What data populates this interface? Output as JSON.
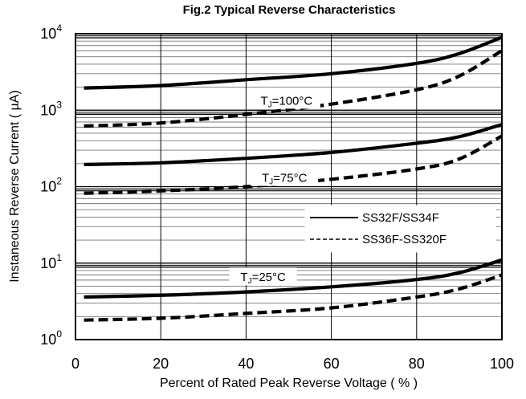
{
  "chart_data": {
    "type": "line",
    "title": "Fig.2  Typical Reverse Characteristics",
    "xlabel": "Percent of Rated Peak Reverse Voltage ( % )",
    "ylabel": "Instaneous Reverse Current ( µA)",
    "xlim": [
      0,
      100
    ],
    "ylim": [
      1,
      10000
    ],
    "yscale": "log",
    "grid": true,
    "x_ticks": [
      "0",
      "20",
      "40",
      "60",
      "80",
      "100"
    ],
    "y_ticks": [
      {
        "base": "10",
        "exp": "0"
      },
      {
        "base": "10",
        "exp": "1"
      },
      {
        "base": "10",
        "exp": "2"
      },
      {
        "base": "10",
        "exp": "3"
      },
      {
        "base": "10",
        "exp": "4"
      }
    ],
    "legend": {
      "position": "right-middle",
      "entries": [
        {
          "label": "SS32F/SS34F",
          "style": "solid"
        },
        {
          "label": "SS36F-SS320F",
          "style": "dashed"
        }
      ]
    },
    "annotations": [
      {
        "main": "T",
        "sub": "J",
        "rest": "=100°C",
        "x": 49.5,
        "y": 1300
      },
      {
        "main": "T",
        "sub": "J",
        "rest": "=75°C",
        "x": 49,
        "y": 127
      },
      {
        "main": "T",
        "sub": "J",
        "rest": "=25°C",
        "x": 44,
        "y": 6.4
      }
    ],
    "series": [
      {
        "style": "solid",
        "group": "TJ=100°C",
        "x": [
          2,
          20,
          40,
          60,
          80,
          90,
          100
        ],
        "y": [
          1950,
          2100,
          2500,
          3000,
          4100,
          5500,
          9000
        ]
      },
      {
        "style": "dashed",
        "group": "TJ=100°C",
        "x": [
          2,
          20,
          40,
          60,
          80,
          90,
          100
        ],
        "y": [
          620,
          680,
          880,
          1200,
          1850,
          2800,
          6000
        ]
      },
      {
        "style": "solid",
        "group": "TJ=75°C",
        "x": [
          2,
          20,
          40,
          60,
          80,
          90,
          100
        ],
        "y": [
          195,
          205,
          235,
          280,
          370,
          450,
          650
        ]
      },
      {
        "style": "dashed",
        "group": "TJ=75°C",
        "x": [
          2,
          20,
          40,
          60,
          80,
          90,
          100
        ],
        "y": [
          82,
          88,
          100,
          125,
          170,
          230,
          460
        ]
      },
      {
        "style": "solid",
        "group": "TJ=25°C",
        "x": [
          2,
          20,
          40,
          60,
          80,
          90,
          100
        ],
        "y": [
          3.6,
          3.8,
          4.2,
          4.9,
          6.1,
          7.5,
          11
        ]
      },
      {
        "style": "dashed",
        "group": "TJ=25°C",
        "x": [
          2,
          20,
          40,
          60,
          80,
          90,
          100
        ],
        "y": [
          1.8,
          1.9,
          2.2,
          2.6,
          3.6,
          4.6,
          7
        ]
      }
    ]
  }
}
